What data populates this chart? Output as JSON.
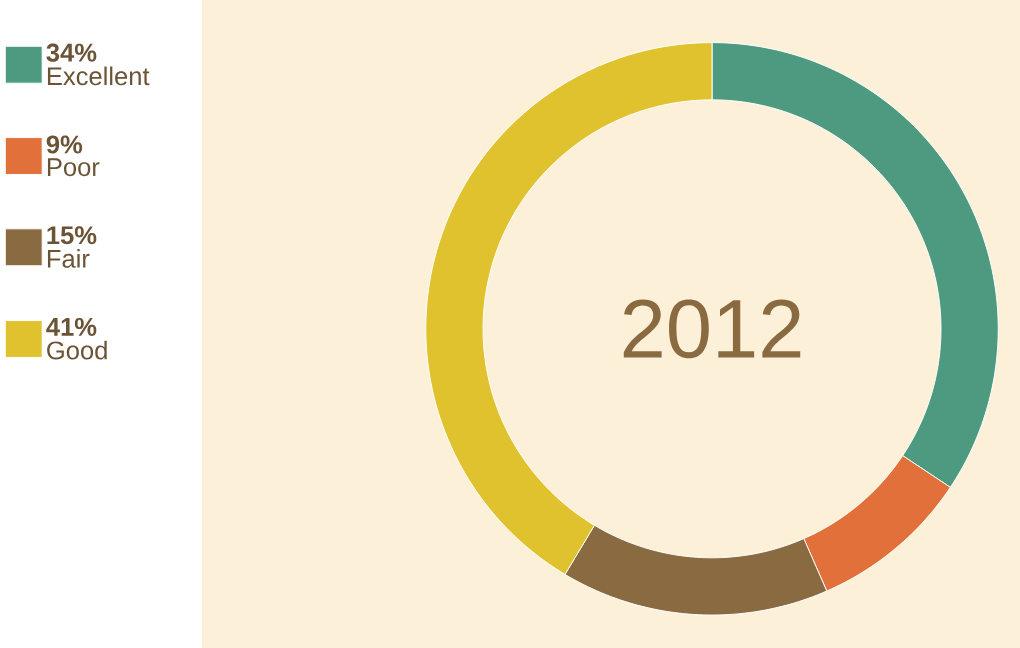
{
  "chart_data": {
    "type": "donut",
    "title": "2012",
    "categories": [
      "Excellent",
      "Poor",
      "Fair",
      "Good"
    ],
    "values": [
      34,
      9,
      15,
      41
    ],
    "value_labels": [
      "34%",
      "9%",
      "15%",
      "41%"
    ],
    "colors": [
      "#4e9a80",
      "#e2703a",
      "#8a6a40",
      "#e0c22e"
    ],
    "legend": "left"
  }
}
